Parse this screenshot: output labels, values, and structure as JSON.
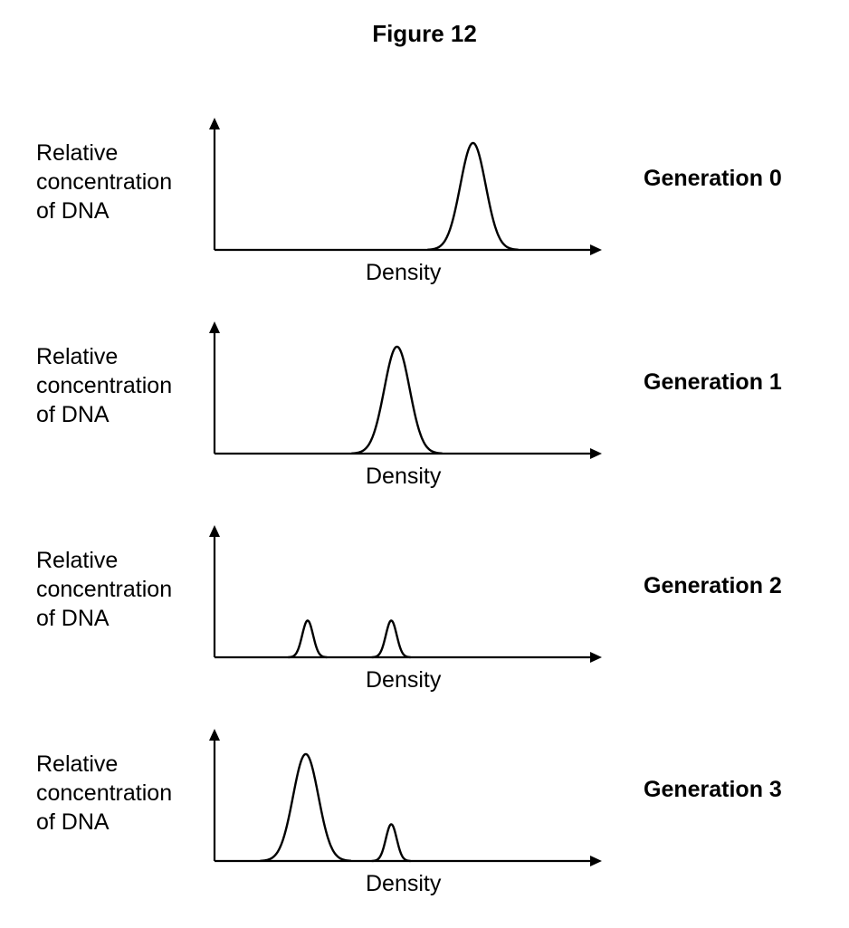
{
  "figure": {
    "title": "Figure 12"
  },
  "chart_data": [
    {
      "type": "line",
      "generation_label": "Generation 0",
      "ylabel_lines": [
        "Relative",
        "concentration",
        "of DNA"
      ],
      "xlabel": "Density",
      "peaks": [
        {
          "position": 0.68,
          "height": 0.96,
          "width": "broad"
        }
      ]
    },
    {
      "type": "line",
      "generation_label": "Generation 1",
      "ylabel_lines": [
        "Relative",
        "concentration",
        "of DNA"
      ],
      "xlabel": "Density",
      "peaks": [
        {
          "position": 0.48,
          "height": 0.96,
          "width": "broad"
        }
      ]
    },
    {
      "type": "line",
      "generation_label": "Generation 2",
      "ylabel_lines": [
        "Relative",
        "concentration",
        "of DNA"
      ],
      "xlabel": "Density",
      "peaks": [
        {
          "position": 0.245,
          "height": 0.33,
          "width": "narrow"
        },
        {
          "position": 0.465,
          "height": 0.33,
          "width": "narrow"
        }
      ]
    },
    {
      "type": "line",
      "generation_label": "Generation 3",
      "ylabel_lines": [
        "Relative",
        "concentration",
        "of DNA"
      ],
      "xlabel": "Density",
      "peaks": [
        {
          "position": 0.24,
          "height": 0.96,
          "width": "broad"
        },
        {
          "position": 0.465,
          "height": 0.33,
          "width": "narrow"
        }
      ]
    }
  ]
}
